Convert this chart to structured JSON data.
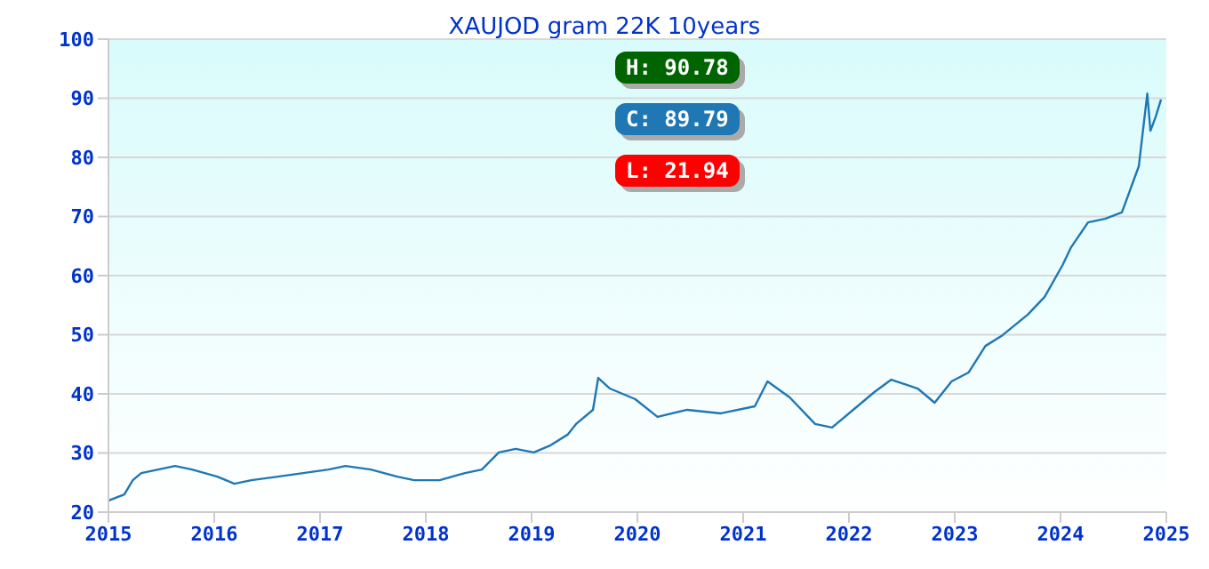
{
  "chart_data": {
    "type": "line",
    "title": "XAUJOD gram 22K 10years",
    "x": [
      2015.0,
      2015.15,
      2015.23,
      2015.31,
      2015.47,
      2015.63,
      2015.79,
      2016.03,
      2016.19,
      2016.35,
      2016.6,
      2016.84,
      2017.08,
      2017.24,
      2017.48,
      2017.73,
      2017.89,
      2018.13,
      2018.37,
      2018.53,
      2018.69,
      2018.85,
      2019.02,
      2019.18,
      2019.34,
      2019.42,
      2019.58,
      2019.63,
      2019.74,
      2019.98,
      2020.19,
      2020.47,
      2020.79,
      2021.11,
      2021.23,
      2021.44,
      2021.68,
      2021.84,
      2022.08,
      2022.24,
      2022.4,
      2022.65,
      2022.81,
      2022.97,
      2023.13,
      2023.29,
      2023.45,
      2023.69,
      2023.85,
      2024.02,
      2024.1,
      2024.26,
      2024.42,
      2024.58,
      2024.74,
      2024.82,
      2024.85,
      2024.9,
      2024.95
    ],
    "series": [
      {
        "color": "#1f77b4",
        "values": [
          21.94,
          23,
          25.4,
          26.6,
          27.2,
          27.8,
          27.2,
          26,
          24.8,
          25.4,
          26,
          26.6,
          27.2,
          27.8,
          27.2,
          26,
          25.4,
          25.4,
          26.6,
          27.2,
          30.1,
          30.7,
          30.1,
          31.3,
          33.1,
          34.9,
          37.3,
          42.7,
          40.9,
          39.1,
          36.1,
          37.3,
          36.7,
          37.9,
          42.1,
          39.4,
          34.9,
          34.3,
          37.9,
          40.3,
          42.4,
          40.9,
          38.5,
          42.1,
          43.6,
          48.1,
          49.9,
          53.4,
          56.4,
          61.8,
          64.8,
          69,
          69.6,
          70.7,
          78.5,
          90.78,
          84.5,
          86.9,
          89.79
        ]
      }
    ],
    "xlim": [
      2015,
      2025
    ],
    "xticks": [
      2015,
      2016,
      2017,
      2018,
      2019,
      2020,
      2021,
      2022,
      2023,
      2024,
      2025
    ],
    "ylim": [
      20,
      100
    ],
    "yticks": [
      20,
      30,
      40,
      50,
      60,
      70,
      80,
      90,
      100
    ],
    "grid": "y",
    "marker": "none",
    "line_style": "solid",
    "annotations": [
      "H: 90.78",
      "C: 89.79",
      "L: 21.94"
    ]
  }
}
